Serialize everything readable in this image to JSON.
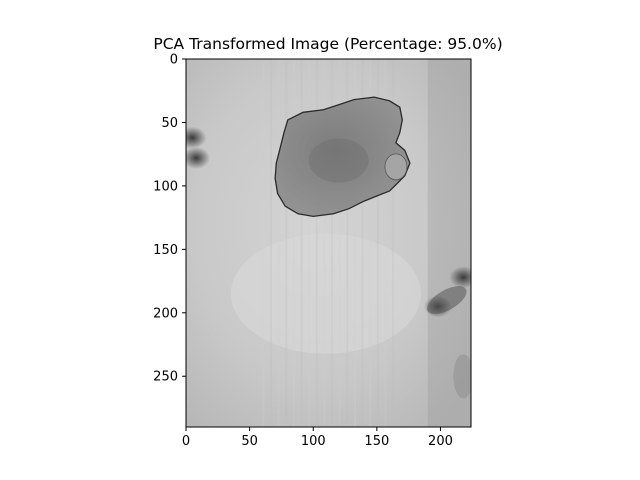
{
  "chart_data": {
    "type": "heatmap",
    "title": "PCA Transformed Image (Percentage: 95.0%)",
    "colormap": "gray",
    "xlim": [
      0,
      224
    ],
    "ylim": [
      290,
      0
    ],
    "x_ticks": [
      0,
      50,
      100,
      150,
      200
    ],
    "y_ticks": [
      0,
      50,
      100,
      150,
      200,
      250
    ],
    "x_tick_labels": [
      "0",
      "50",
      "100",
      "150",
      "200"
    ],
    "y_tick_labels": [
      "0",
      "50",
      "100",
      "150",
      "200",
      "250"
    ],
    "image_content": {
      "background_gray_level": 0.78,
      "lesion_blob_gray_level": 0.52,
      "lesion_center": [
        110,
        80
      ],
      "lesion_extent_x": [
        70,
        175
      ],
      "lesion_extent_y": [
        30,
        125
      ],
      "dark_spots": [
        {
          "center": [
            5,
            62
          ],
          "gray_level": 0.25
        },
        {
          "center": [
            8,
            78
          ],
          "gray_level": 0.22
        },
        {
          "center": [
            218,
            172
          ],
          "gray_level": 0.3
        },
        {
          "center": [
            198,
            195
          ],
          "gray_level": 0.35
        }
      ]
    }
  }
}
